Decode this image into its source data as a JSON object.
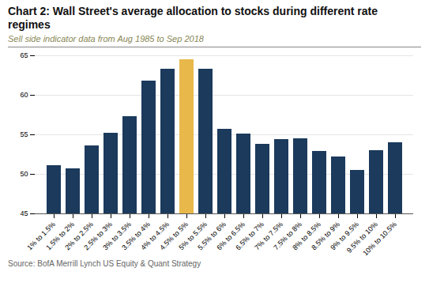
{
  "chart_data": {
    "type": "bar",
    "title": "Chart 2: Wall Street's average allocation to stocks during different rate\nregimes",
    "subtitle": "Sell side indicator data from Aug 1985 to Sep 2018",
    "source": "Source: BofA Merrill Lynch US Equity & Quant Strategy",
    "categories": [
      "1% to 1.5%",
      "1.5% to 2%",
      "2% to 2.5%",
      "2.5% to 3%",
      "3% to 3.5%",
      "3.5% to 4%",
      "4% to 4.5%",
      "4.5% to 5%",
      "5% to 5.5%",
      "5.5% to 6%",
      "6% to 6.5%",
      "6.5% to 7%",
      "7% to 7.5%",
      "7.5% to 8%",
      "8% to 8.5%",
      "8.5% to 9%",
      "9% to 9.5%",
      "9.5% to 10%",
      "10% to 10.5%"
    ],
    "values": [
      51.1,
      50.7,
      53.6,
      55.2,
      57.3,
      61.8,
      63.3,
      64.5,
      63.3,
      55.7,
      55.1,
      53.8,
      54.4,
      54.5,
      52.9,
      52.2,
      50.5,
      53.0,
      54.0
    ],
    "colors": [
      "#1b3a5c",
      "#1b3a5c",
      "#1b3a5c",
      "#1b3a5c",
      "#1b3a5c",
      "#1b3a5c",
      "#1b3a5c",
      "#e8b84b",
      "#1b3a5c",
      "#1b3a5c",
      "#1b3a5c",
      "#1b3a5c",
      "#1b3a5c",
      "#1b3a5c",
      "#1b3a5c",
      "#1b3a5c",
      "#1b3a5c",
      "#1b3a5c",
      "#1b3a5c"
    ],
    "ylim": [
      45,
      65
    ],
    "yticks": [
      45,
      50,
      55,
      60,
      65
    ],
    "grid": true
  }
}
